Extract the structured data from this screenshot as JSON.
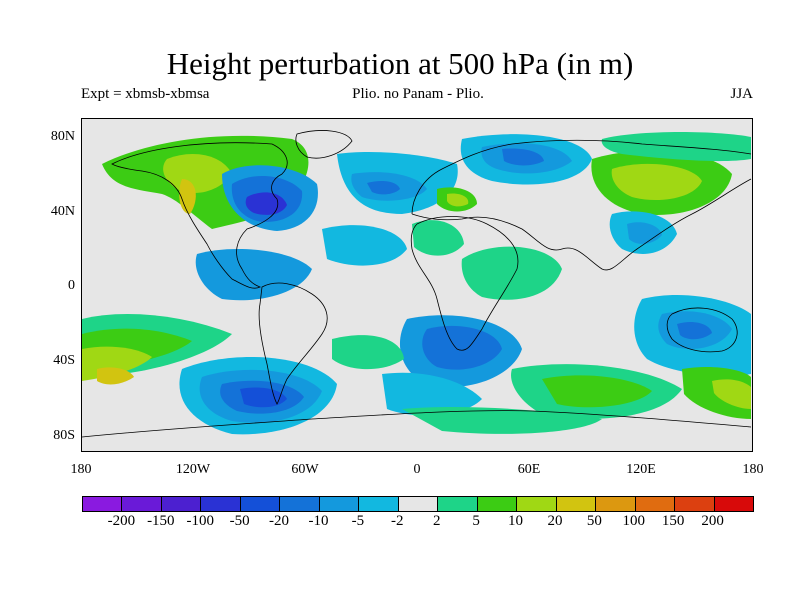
{
  "title": "Height perturbation at 500 hPa (in m)",
  "subtitle_left": "Expt = xbmsb-xbmsa",
  "subtitle_center": "Plio. no Panam - Plio.",
  "subtitle_right": "JJA",
  "lat_labels": [
    "80N",
    "40N",
    "0",
    "40S",
    "80S"
  ],
  "lon_labels": [
    "180",
    "120W",
    "60W",
    "0",
    "60E",
    "120E",
    "180"
  ],
  "colorbar": {
    "labels": [
      "-200",
      "-150",
      "-100",
      "-50",
      "-20",
      "-10",
      "-5",
      "-2",
      "2",
      "5",
      "10",
      "20",
      "50",
      "100",
      "150",
      "200"
    ],
    "colors": [
      "#8a1ae0",
      "#6a1ad8",
      "#4c20d0",
      "#2a32d4",
      "#1450d8",
      "#1472d8",
      "#1499dd",
      "#12b8e0",
      "#e6e6e6",
      "#1ed488",
      "#3ccc14",
      "#a0d814",
      "#d2c410",
      "#dc9810",
      "#e06c10",
      "#dc4010",
      "#d80a0a"
    ]
  },
  "palette": {
    "background": "#e6e6e6",
    "coast": "#000000"
  }
}
